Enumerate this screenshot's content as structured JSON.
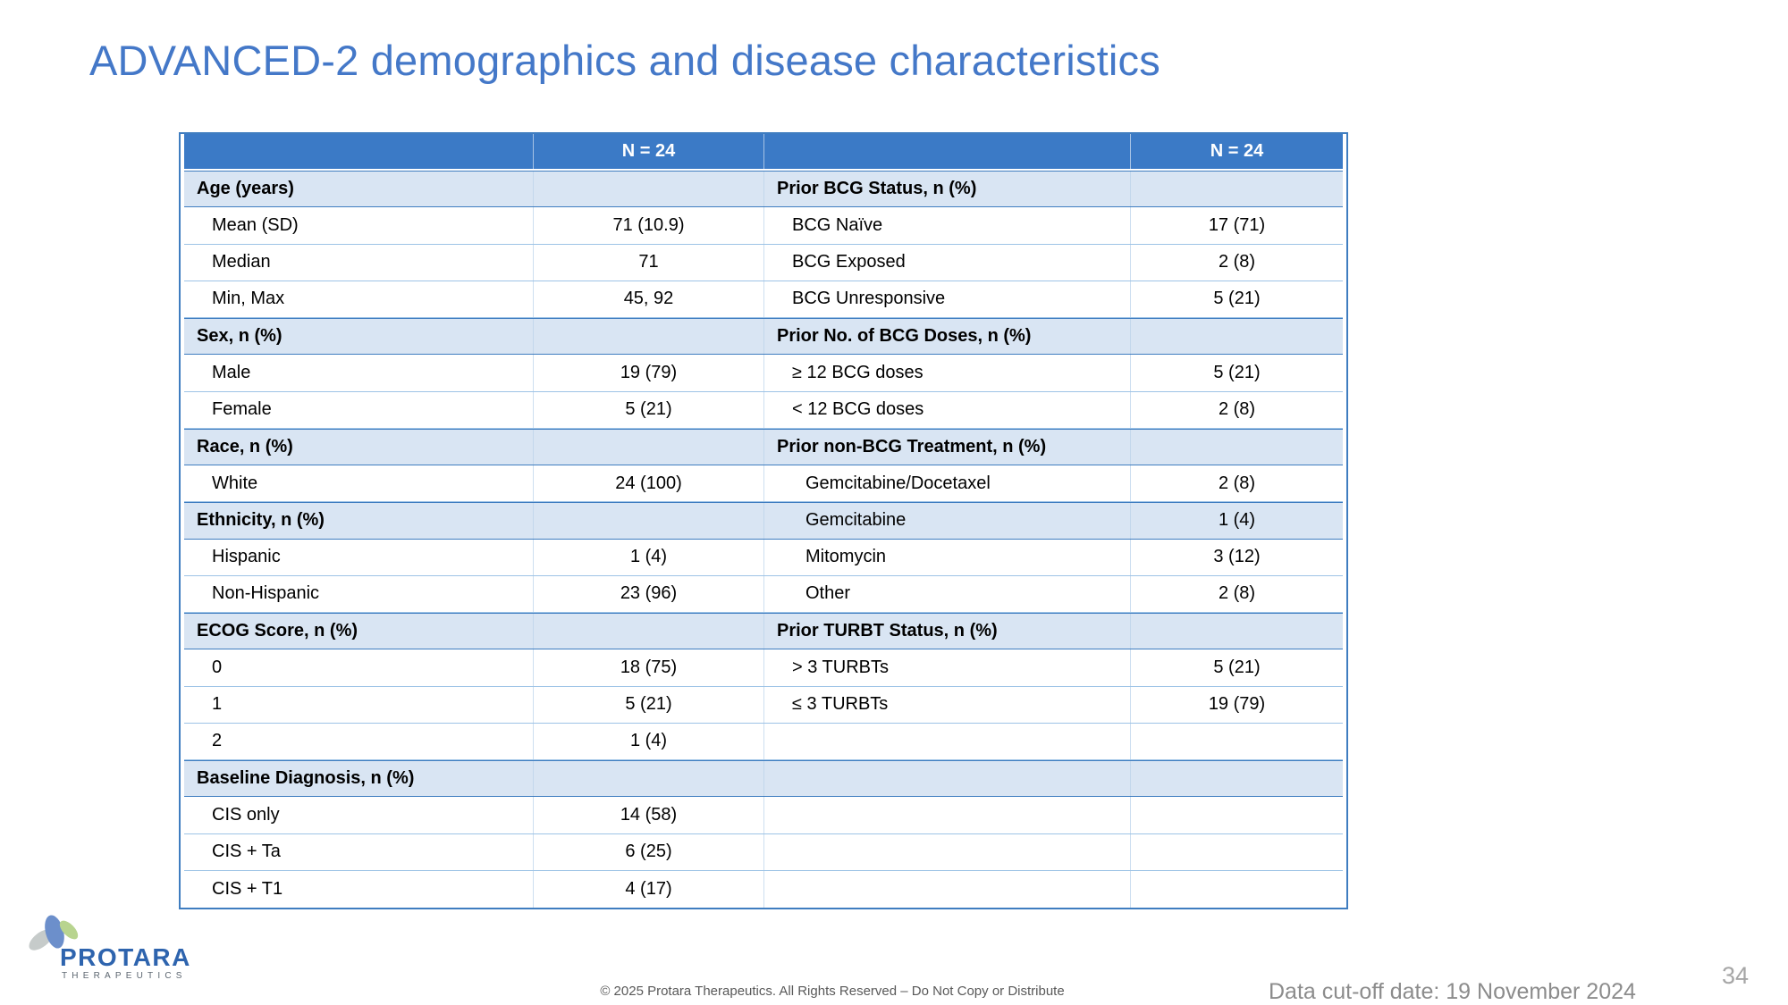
{
  "slide": {
    "title": "ADVANCED-2 demographics and disease characteristics",
    "page_number": "34",
    "copyright": "© 2025 Protara Therapeutics. All Rights Reserved – Do Not Copy or Distribute",
    "data_cutoff": "Data cut-off date: 19 November 2024"
  },
  "logo": {
    "name": "PROTARA",
    "subtitle": "THERAPEUTICS"
  },
  "colors": {
    "header_bg": "#3B7AC6",
    "category_row_bg": "#D9E5F3",
    "row_border_light": "#9DC3E6",
    "row_border_dark": "#3F7DC0",
    "title_blue": "#4478C8",
    "logo_blue": "#2E64AE",
    "logo_green": "#B8D48F",
    "logo_gray": "#C6CBCA"
  },
  "table": {
    "header": {
      "col1": "",
      "col2": "N = 24",
      "col3": "",
      "col4": "N = 24"
    },
    "rows": [
      {
        "highlight": true,
        "left": {
          "label": "Age (years)",
          "value": "",
          "category": true,
          "indent": 0
        },
        "right": {
          "label": "Prior BCG Status, n (%)",
          "value": "",
          "category": true,
          "indent": 0
        }
      },
      {
        "highlight": false,
        "left": {
          "label": "Mean (SD)",
          "value": "71 (10.9)",
          "category": false,
          "indent": 1
        },
        "right": {
          "label": "BCG Naïve",
          "value": "17 (71)",
          "category": false,
          "indent": 1
        }
      },
      {
        "highlight": false,
        "left": {
          "label": "Median",
          "value": "71",
          "category": false,
          "indent": 1
        },
        "right": {
          "label": "BCG Exposed",
          "value": "2 (8)",
          "category": false,
          "indent": 1
        }
      },
      {
        "highlight": false,
        "left": {
          "label": "Min, Max",
          "value": "45, 92",
          "category": false,
          "indent": 1
        },
        "right": {
          "label": "BCG Unresponsive",
          "value": "5 (21)",
          "category": false,
          "indent": 1
        }
      },
      {
        "highlight": true,
        "left": {
          "label": "Sex, n (%)",
          "value": "",
          "category": true,
          "indent": 0
        },
        "right": {
          "label": "Prior No. of BCG Doses, n (%)",
          "value": "",
          "category": true,
          "indent": 0
        }
      },
      {
        "highlight": false,
        "left": {
          "label": "Male",
          "value": "19 (79)",
          "category": false,
          "indent": 1
        },
        "right": {
          "label": "≥ 12 BCG doses",
          "value": "5 (21)",
          "category": false,
          "indent": 1
        }
      },
      {
        "highlight": false,
        "left": {
          "label": "Female",
          "value": "5 (21)",
          "category": false,
          "indent": 1
        },
        "right": {
          "label": "< 12 BCG doses",
          "value": "2 (8)",
          "category": false,
          "indent": 1
        }
      },
      {
        "highlight": true,
        "left": {
          "label": "Race, n (%)",
          "value": "",
          "category": true,
          "indent": 0
        },
        "right": {
          "label": "Prior non-BCG Treatment, n (%)",
          "value": "",
          "category": true,
          "indent": 0
        }
      },
      {
        "highlight": false,
        "left": {
          "label": "White",
          "value": "24 (100)",
          "category": false,
          "indent": 1
        },
        "right": {
          "label": "Gemcitabine/Docetaxel",
          "value": "2 (8)",
          "category": false,
          "indent": 2
        }
      },
      {
        "highlight": true,
        "left": {
          "label": "Ethnicity, n (%)",
          "value": "",
          "category": true,
          "indent": 0
        },
        "right": {
          "label": "Gemcitabine",
          "value": "1 (4)",
          "category": false,
          "indent": 2
        }
      },
      {
        "highlight": false,
        "left": {
          "label": "Hispanic",
          "value": "1 (4)",
          "category": false,
          "indent": 1
        },
        "right": {
          "label": "Mitomycin",
          "value": "3 (12)",
          "category": false,
          "indent": 2
        }
      },
      {
        "highlight": false,
        "left": {
          "label": "Non-Hispanic",
          "value": "23 (96)",
          "category": false,
          "indent": 1
        },
        "right": {
          "label": "Other",
          "value": "2 (8)",
          "category": false,
          "indent": 2
        }
      },
      {
        "highlight": true,
        "left": {
          "label": "ECOG Score, n (%)",
          "value": "",
          "category": true,
          "indent": 0
        },
        "right": {
          "label": "Prior TURBT Status, n (%)",
          "value": "",
          "category": true,
          "indent": 0
        }
      },
      {
        "highlight": false,
        "left": {
          "label": "0",
          "value": "18 (75)",
          "category": false,
          "indent": 1
        },
        "right": {
          "label": "> 3 TURBTs",
          "value": "5 (21)",
          "category": false,
          "indent": 1
        }
      },
      {
        "highlight": false,
        "left": {
          "label": "1",
          "value": "5 (21)",
          "category": false,
          "indent": 1
        },
        "right": {
          "label": "≤ 3 TURBTs",
          "value": "19 (79)",
          "category": false,
          "indent": 1
        }
      },
      {
        "highlight": false,
        "left": {
          "label": "2",
          "value": "1 (4)",
          "category": false,
          "indent": 1
        },
        "right": {
          "label": "",
          "value": "",
          "category": false,
          "indent": 0
        }
      },
      {
        "highlight": true,
        "left": {
          "label": "Baseline Diagnosis, n (%)",
          "value": "",
          "category": true,
          "indent": 0
        },
        "right": {
          "label": "",
          "value": "",
          "category": false,
          "indent": 0
        }
      },
      {
        "highlight": false,
        "left": {
          "label": "CIS only",
          "value": "14 (58)",
          "category": false,
          "indent": 1
        },
        "right": {
          "label": "",
          "value": "",
          "category": false,
          "indent": 0
        }
      },
      {
        "highlight": false,
        "left": {
          "label": "CIS + Ta",
          "value": "6 (25)",
          "category": false,
          "indent": 1
        },
        "right": {
          "label": "",
          "value": "",
          "category": false,
          "indent": 0
        }
      },
      {
        "highlight": false,
        "left": {
          "label": "CIS + T1",
          "value": "4 (17)",
          "category": false,
          "indent": 1
        },
        "right": {
          "label": "",
          "value": "",
          "category": false,
          "indent": 0
        }
      }
    ]
  }
}
